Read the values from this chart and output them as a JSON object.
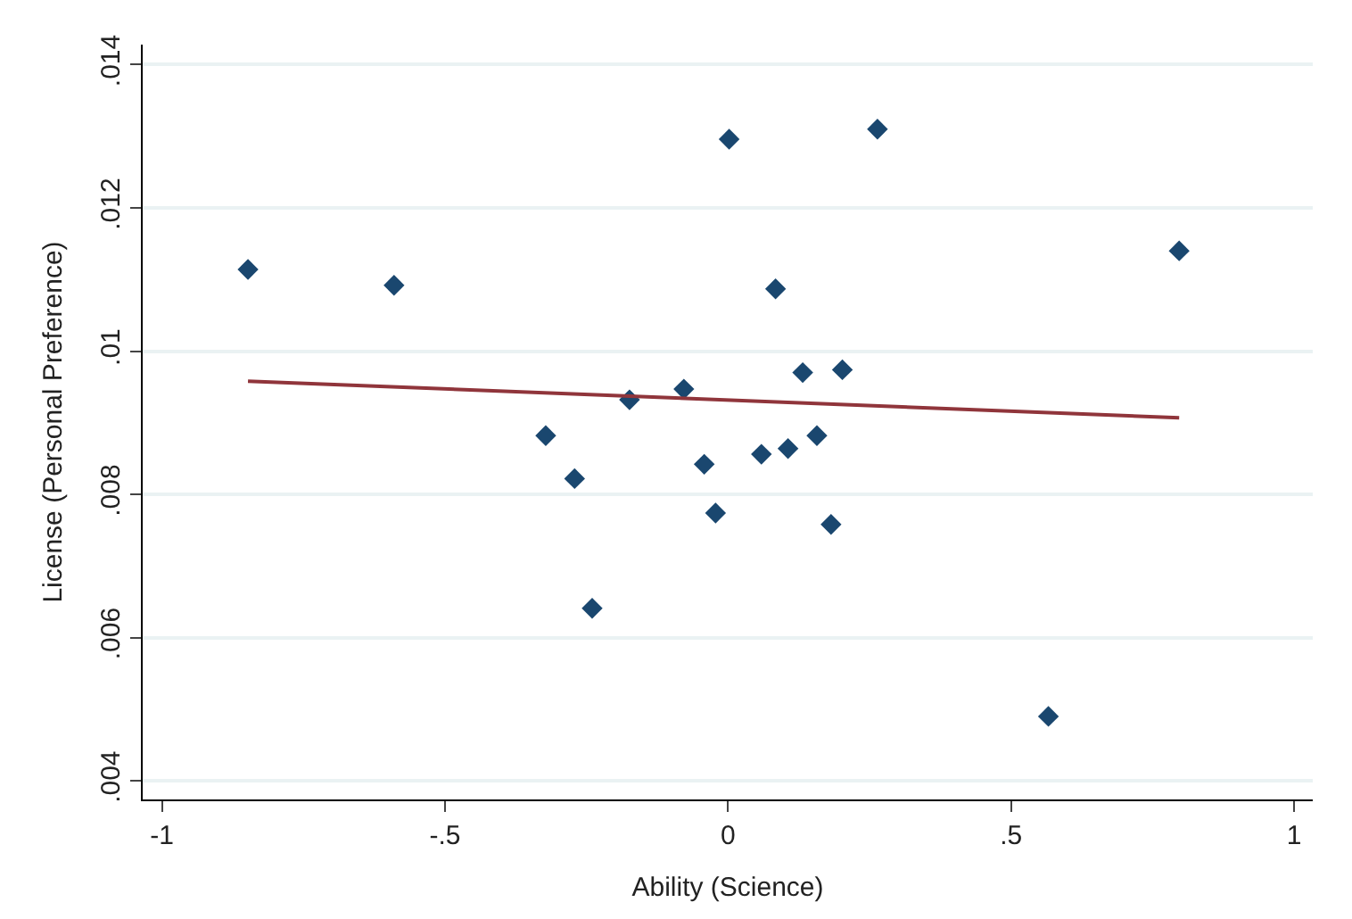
{
  "chart_data": {
    "type": "scatter",
    "xlabel": "Ability (Science)",
    "ylabel": "License (Personal Preference)",
    "xlim": [
      -1.034,
      1.033
    ],
    "ylim": [
      0.00374,
      0.01428
    ],
    "xticks": [
      {
        "value": -1,
        "label": "-1"
      },
      {
        "value": -0.5,
        "label": "-.5"
      },
      0,
      {
        "value": 0.5,
        "label": ".5"
      },
      1
    ],
    "yticks": [
      {
        "value": 0.004,
        "label": ".004"
      },
      {
        "value": 0.006,
        "label": ".006"
      },
      {
        "value": 0.008,
        "label": ".008"
      },
      {
        "value": 0.01,
        "label": ".01"
      },
      {
        "value": 0.012,
        "label": ".012"
      },
      {
        "value": 0.014,
        "label": ".014"
      }
    ],
    "grid": "y",
    "marker": "diamond",
    "series": [
      {
        "color": "#1a476f",
        "x": [
          -0.848,
          -0.59,
          -0.322,
          -0.271,
          -0.24,
          -0.174,
          -0.078,
          -0.042,
          -0.022,
          0.002,
          0.059,
          0.084,
          0.106,
          0.132,
          0.157,
          0.182,
          0.202,
          0.264,
          0.566,
          0.797
        ],
        "values": [
          0.01114,
          0.01092,
          0.00882,
          0.00822,
          0.00641,
          0.00932,
          0.00947,
          0.00842,
          0.00774,
          0.01296,
          0.00856,
          0.01087,
          0.00864,
          0.0097,
          0.00882,
          0.00758,
          0.00974,
          0.0131,
          0.0049,
          0.0114
        ]
      },
      {
        "type": "line",
        "marker": "none",
        "color": "#90353b",
        "x": [
          -0.848,
          0.797
        ],
        "values": [
          0.00958,
          0.00907
        ]
      }
    ]
  }
}
